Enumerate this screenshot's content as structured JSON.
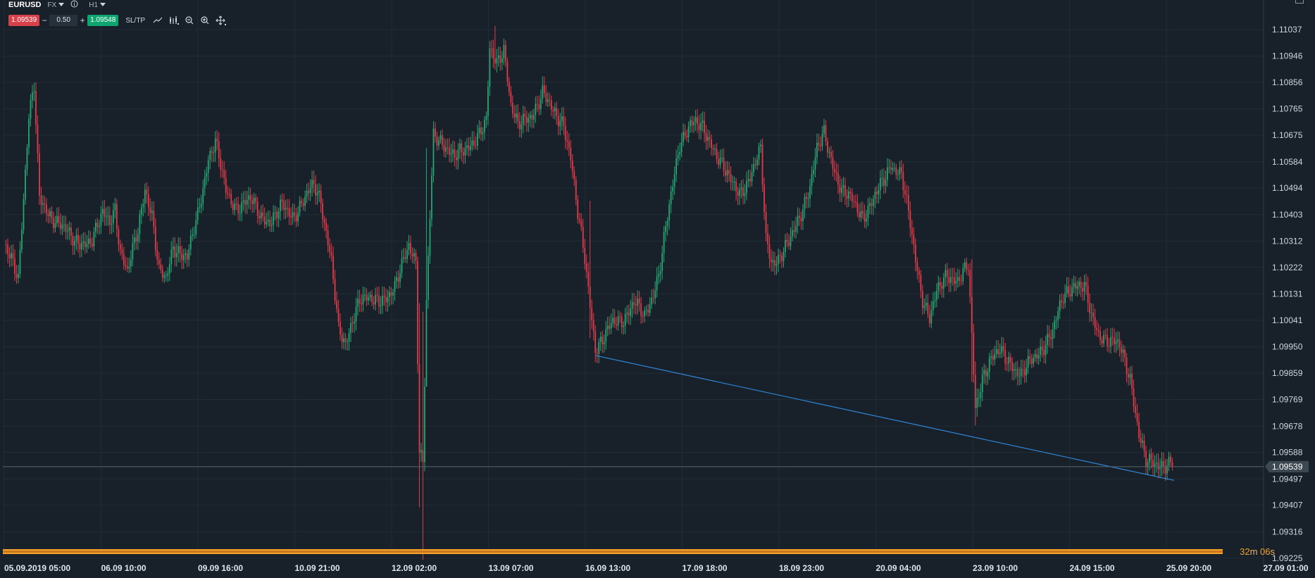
{
  "toolbar": {
    "symbol": "EURUSD",
    "market": "FX",
    "timeframe": "H1",
    "bid": "1.09539",
    "minus": "−",
    "lot": "0.50",
    "plus": "+",
    "ask": "1.09548",
    "sltp_label": "SL/TP",
    "tools": [
      "line-chart-icon",
      "indicators-icon",
      "zoom-out-icon",
      "zoom-in-icon",
      "crosshair-icon"
    ]
  },
  "timer": {
    "minutes": "32",
    "m": "m",
    "seconds": "06",
    "s": "s"
  },
  "colors": {
    "background": "#18212a",
    "up": "#26a673",
    "down": "#e03b4a",
    "trendline": "#2f86d8",
    "grid": "#212c36",
    "price_line": "#55656f",
    "bar": "#f2a02e"
  },
  "chart_data": {
    "type": "candlestick",
    "symbol": "EURUSD",
    "timeframe": "H1",
    "current_price": 1.09539,
    "y_ticks": [
      "1.11037",
      "1.10946",
      "1.10856",
      "1.10765",
      "1.10675",
      "1.10584",
      "1.10494",
      "1.10403",
      "1.10312",
      "1.10222",
      "1.10131",
      "1.10041",
      "1.09950",
      "1.09859",
      "1.09769",
      "1.09678",
      "1.09588",
      "1.09497",
      "1.09407",
      "1.09316",
      "1.09225"
    ],
    "x_ticks": [
      "05.09.2019 05:00",
      "06.09 10:00",
      "09.09 16:00",
      "10.09 21:00",
      "12.09 02:00",
      "13.09 07:00",
      "16.09 13:00",
      "17.09 18:00",
      "18.09 23:00",
      "20.09 04:00",
      "23.09 10:00",
      "24.09 15:00",
      "25.09 20:00",
      "27.09 01:00"
    ],
    "ylim": [
      1.09225,
      1.11037
    ],
    "close_path": [
      [
        0,
        1.103
      ],
      [
        8,
        1.1018
      ],
      [
        14,
        1.1075
      ],
      [
        17,
        1.1085
      ],
      [
        20,
        1.1045
      ],
      [
        25,
        1.104
      ],
      [
        32,
        1.1038
      ],
      [
        40,
        1.103
      ],
      [
        50,
        1.1032
      ],
      [
        56,
        1.104
      ],
      [
        60,
        1.1038
      ],
      [
        63,
        1.1043
      ],
      [
        66,
        1.1028
      ],
      [
        70,
        1.102
      ],
      [
        76,
        1.1035
      ],
      [
        80,
        1.105
      ],
      [
        84,
        1.104
      ],
      [
        88,
        1.102
      ],
      [
        92,
        1.1018
      ],
      [
        96,
        1.103
      ],
      [
        104,
        1.1025
      ],
      [
        110,
        1.104
      ],
      [
        116,
        1.106
      ],
      [
        120,
        1.1065
      ],
      [
        126,
        1.1048
      ],
      [
        132,
        1.1043
      ],
      [
        140,
        1.1045
      ],
      [
        146,
        1.104
      ],
      [
        152,
        1.1038
      ],
      [
        158,
        1.1043
      ],
      [
        164,
        1.104
      ],
      [
        170,
        1.1045
      ],
      [
        176,
        1.105
      ],
      [
        180,
        1.1045
      ],
      [
        186,
        1.1025
      ],
      [
        190,
        1.1
      ],
      [
        194,
        1.0995
      ],
      [
        198,
        1.1005
      ],
      [
        202,
        1.1012
      ],
      [
        210,
        1.101
      ],
      [
        218,
        1.1013
      ],
      [
        222,
        1.1015
      ],
      [
        226,
        1.1022
      ],
      [
        230,
        1.103
      ],
      [
        234,
        1.1025
      ],
      [
        236,
        1.096
      ],
      [
        238,
        1.0955
      ],
      [
        240,
        1.101
      ],
      [
        244,
        1.1067
      ],
      [
        250,
        1.1065
      ],
      [
        256,
        1.106
      ],
      [
        262,
        1.1062
      ],
      [
        268,
        1.1067
      ],
      [
        274,
        1.1072
      ],
      [
        276,
        1.1096
      ],
      [
        280,
        1.1092
      ],
      [
        284,
        1.1098
      ],
      [
        288,
        1.1078
      ],
      [
        292,
        1.107
      ],
      [
        300,
        1.1075
      ],
      [
        306,
        1.1082
      ],
      [
        312,
        1.1075
      ],
      [
        318,
        1.1072
      ],
      [
        322,
        1.106
      ],
      [
        326,
        1.104
      ],
      [
        330,
        1.1025
      ],
      [
        333,
        1.101
      ],
      [
        336,
        1.0995
      ],
      [
        340,
        1.0997
      ],
      [
        346,
        1.1003
      ],
      [
        352,
        1.1005
      ],
      [
        358,
        1.101
      ],
      [
        364,
        1.1005
      ],
      [
        368,
        1.1012
      ],
      [
        372,
        1.102
      ],
      [
        376,
        1.1035
      ],
      [
        380,
        1.105
      ],
      [
        384,
        1.1065
      ],
      [
        390,
        1.1072
      ],
      [
        396,
        1.107
      ],
      [
        402,
        1.1065
      ],
      [
        406,
        1.106
      ],
      [
        412,
        1.1052
      ],
      [
        418,
        1.1048
      ],
      [
        424,
        1.1053
      ],
      [
        430,
        1.1062
      ],
      [
        433,
        1.1032
      ],
      [
        436,
        1.1025
      ],
      [
        440,
        1.1025
      ],
      [
        446,
        1.103
      ],
      [
        452,
        1.104
      ],
      [
        458,
        1.105
      ],
      [
        462,
        1.1062
      ],
      [
        466,
        1.1068
      ],
      [
        470,
        1.106
      ],
      [
        476,
        1.1048
      ],
      [
        482,
        1.1045
      ],
      [
        488,
        1.104
      ],
      [
        494,
        1.1045
      ],
      [
        500,
        1.1052
      ],
      [
        504,
        1.1058
      ],
      [
        510,
        1.1054
      ],
      [
        514,
        1.104
      ],
      [
        518,
        1.1025
      ],
      [
        522,
        1.1012
      ],
      [
        526,
        1.1005
      ],
      [
        530,
        1.1013
      ],
      [
        536,
        1.102
      ],
      [
        542,
        1.1018
      ],
      [
        548,
        1.1022
      ],
      [
        550,
        1.0998
      ],
      [
        552,
        1.0974
      ],
      [
        556,
        1.0985
      ],
      [
        560,
        1.099
      ],
      [
        566,
        1.0993
      ],
      [
        572,
        1.099
      ],
      [
        578,
        1.0985
      ],
      [
        584,
        1.099
      ],
      [
        590,
        1.0995
      ],
      [
        596,
        1.1
      ],
      [
        602,
        1.1012
      ],
      [
        608,
        1.1017
      ],
      [
        614,
        1.1015
      ],
      [
        618,
        1.1005
      ],
      [
        622,
        1.1
      ],
      [
        628,
        1.0997
      ],
      [
        634,
        1.0995
      ],
      [
        640,
        1.0985
      ],
      [
        645,
        1.0965
      ],
      [
        649,
        1.0955
      ]
    ],
    "series": [
      {
        "name": "trendline",
        "x": [
          336,
          665
        ],
        "y": [
          1.0992,
          1.09492
        ]
      }
    ]
  }
}
